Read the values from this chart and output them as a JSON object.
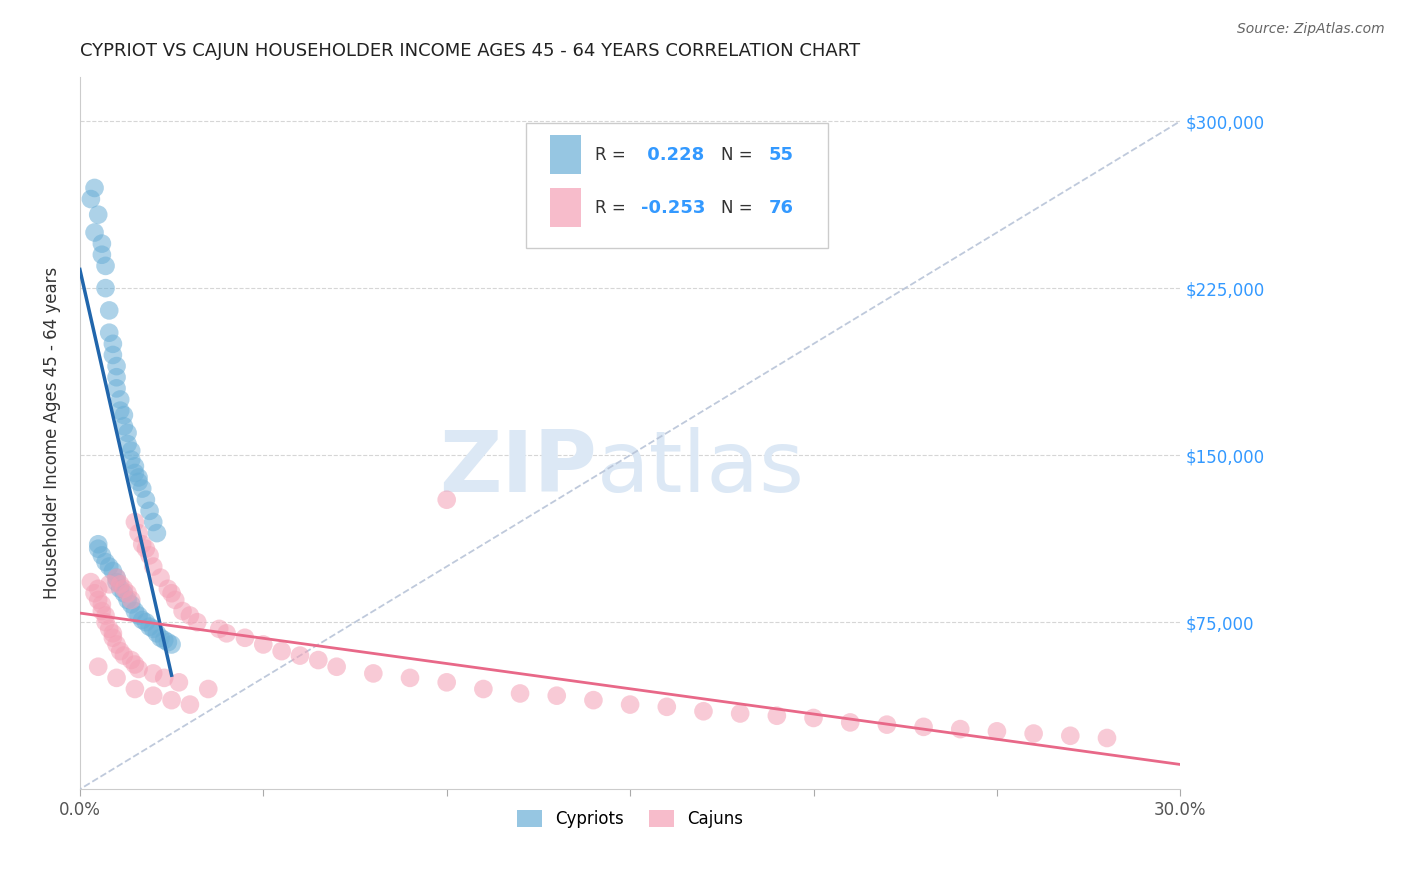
{
  "title": "CYPRIOT VS CAJUN HOUSEHOLDER INCOME AGES 45 - 64 YEARS CORRELATION CHART",
  "source": "Source: ZipAtlas.com",
  "ylabel": "Householder Income Ages 45 - 64 years",
  "ytick_labels": [
    "$75,000",
    "$150,000",
    "$225,000",
    "$300,000"
  ],
  "ytick_values": [
    75000,
    150000,
    225000,
    300000
  ],
  "ylim": [
    0,
    320000
  ],
  "xlim": [
    0.0,
    0.3
  ],
  "legend_cypriot_r": "0.228",
  "legend_cypriot_n": "55",
  "legend_cajun_r": "-0.253",
  "legend_cajun_n": "76",
  "cypriot_color": "#6aaed6",
  "cajun_color": "#f4a0b5",
  "cypriot_line_color": "#2166ac",
  "cajun_line_color": "#e86888",
  "diagonal_color": "#b8c4d8",
  "background_color": "#ffffff",
  "grid_color": "#cccccc",
  "cypriot_x": [
    0.004,
    0.005,
    0.006,
    0.006,
    0.007,
    0.007,
    0.008,
    0.008,
    0.009,
    0.009,
    0.01,
    0.01,
    0.01,
    0.011,
    0.011,
    0.012,
    0.012,
    0.013,
    0.013,
    0.014,
    0.014,
    0.015,
    0.015,
    0.016,
    0.016,
    0.017,
    0.018,
    0.019,
    0.02,
    0.021,
    0.003,
    0.004,
    0.005,
    0.005,
    0.006,
    0.007,
    0.008,
    0.009,
    0.01,
    0.01,
    0.011,
    0.012,
    0.013,
    0.014,
    0.015,
    0.016,
    0.017,
    0.018,
    0.019,
    0.02,
    0.021,
    0.022,
    0.023,
    0.024,
    0.025
  ],
  "cypriot_y": [
    270000,
    258000,
    245000,
    240000,
    235000,
    225000,
    215000,
    205000,
    200000,
    195000,
    190000,
    185000,
    180000,
    175000,
    170000,
    168000,
    163000,
    160000,
    155000,
    152000,
    148000,
    145000,
    142000,
    140000,
    138000,
    135000,
    130000,
    125000,
    120000,
    115000,
    265000,
    250000,
    110000,
    108000,
    105000,
    102000,
    100000,
    98000,
    95000,
    93000,
    90000,
    88000,
    85000,
    83000,
    80000,
    78000,
    76000,
    75000,
    73000,
    72000,
    70000,
    68000,
    67000,
    66000,
    65000
  ],
  "cajun_x": [
    0.003,
    0.004,
    0.005,
    0.005,
    0.006,
    0.006,
    0.007,
    0.007,
    0.008,
    0.008,
    0.009,
    0.009,
    0.01,
    0.01,
    0.011,
    0.011,
    0.012,
    0.012,
    0.013,
    0.014,
    0.014,
    0.015,
    0.015,
    0.016,
    0.016,
    0.017,
    0.018,
    0.019,
    0.02,
    0.02,
    0.022,
    0.023,
    0.024,
    0.025,
    0.026,
    0.027,
    0.028,
    0.03,
    0.032,
    0.035,
    0.038,
    0.04,
    0.045,
    0.05,
    0.055,
    0.06,
    0.065,
    0.07,
    0.08,
    0.09,
    0.1,
    0.11,
    0.12,
    0.13,
    0.14,
    0.15,
    0.16,
    0.17,
    0.18,
    0.19,
    0.2,
    0.21,
    0.22,
    0.23,
    0.24,
    0.25,
    0.26,
    0.27,
    0.28,
    0.1,
    0.005,
    0.01,
    0.015,
    0.02,
    0.025,
    0.03
  ],
  "cajun_y": [
    93000,
    88000,
    85000,
    90000,
    83000,
    80000,
    78000,
    75000,
    72000,
    92000,
    70000,
    68000,
    95000,
    65000,
    92000,
    62000,
    90000,
    60000,
    88000,
    85000,
    58000,
    120000,
    56000,
    115000,
    54000,
    110000,
    108000,
    105000,
    100000,
    52000,
    95000,
    50000,
    90000,
    88000,
    85000,
    48000,
    80000,
    78000,
    75000,
    45000,
    72000,
    70000,
    68000,
    65000,
    62000,
    60000,
    58000,
    55000,
    52000,
    50000,
    48000,
    45000,
    43000,
    42000,
    40000,
    38000,
    37000,
    35000,
    34000,
    33000,
    32000,
    30000,
    29000,
    28000,
    27000,
    26000,
    25000,
    24000,
    23000,
    130000,
    55000,
    50000,
    45000,
    42000,
    40000,
    38000
  ]
}
